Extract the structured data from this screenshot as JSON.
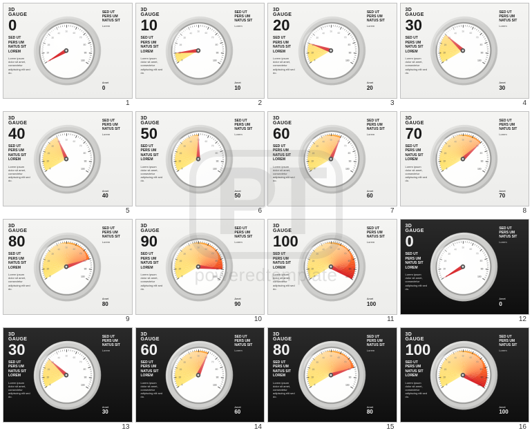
{
  "page": {
    "title_text": "3D GAUGE",
    "body_text": "SED UT\nPERS UM\nNATUS SIT\nLOREM",
    "desc_text": "Lorem ipsum dolor sit amet, consectetur adipiscing elit sed do.",
    "right_heading": "SED UT\nPERS UM\nNATUS SIT",
    "right_lorem": "Lorem",
    "right_bottom_label": "Amet",
    "watermark_logo": "PT",
    "watermark_text": "poweredtemplate"
  },
  "gauge": {
    "min": 0,
    "max": 100,
    "tick_step": 10,
    "start_angle": -120,
    "end_angle": 120,
    "face_color": "#fdfdfc",
    "bezel_outer": "#d8d8d6",
    "bezel_mid": "#b8b8b6",
    "bezel_inner": "#f0f0ee",
    "tick_color": "#333333",
    "needle_color": "#d8262a",
    "needle_hub": "#3a3a3a",
    "tick_label_fontsize": 3.2,
    "title_fontsize": 7,
    "value_fontsize": 22
  },
  "fill_stops": [
    {
      "at": 0,
      "color": "#ffe97d"
    },
    {
      "at": 20,
      "color": "#ffd758"
    },
    {
      "at": 40,
      "color": "#ffbe3e"
    },
    {
      "at": 60,
      "color": "#ff9c2e"
    },
    {
      "at": 80,
      "color": "#ff6e24"
    },
    {
      "at": 100,
      "color": "#d92020"
    }
  ],
  "slides": [
    {
      "num": 1,
      "value": 0,
      "theme": "light"
    },
    {
      "num": 2,
      "value": 10,
      "theme": "light"
    },
    {
      "num": 3,
      "value": 20,
      "theme": "light"
    },
    {
      "num": 4,
      "value": 30,
      "theme": "light"
    },
    {
      "num": 5,
      "value": 40,
      "theme": "light"
    },
    {
      "num": 6,
      "value": 50,
      "theme": "light"
    },
    {
      "num": 7,
      "value": 60,
      "theme": "light"
    },
    {
      "num": 8,
      "value": 70,
      "theme": "light"
    },
    {
      "num": 9,
      "value": 80,
      "theme": "light"
    },
    {
      "num": 10,
      "value": 90,
      "theme": "light"
    },
    {
      "num": 11,
      "value": 100,
      "theme": "light"
    },
    {
      "num": 12,
      "value": 0,
      "theme": "dark"
    },
    {
      "num": 13,
      "value": 30,
      "theme": "dark"
    },
    {
      "num": 14,
      "value": 60,
      "theme": "dark"
    },
    {
      "num": 15,
      "value": 80,
      "theme": "dark"
    },
    {
      "num": 16,
      "value": 100,
      "theme": "dark"
    }
  ]
}
